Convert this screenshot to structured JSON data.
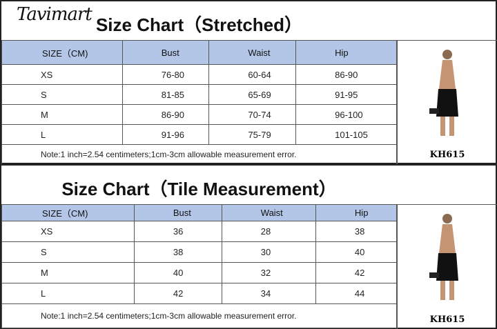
{
  "brand": "Tavimart",
  "columns": [
    "SIZE（CM)",
    "Bust",
    "Waist",
    "Hip"
  ],
  "note": "Note:1 inch=2.54 centimeters;1cm-3cm allowable measurement error.",
  "product_code": "KH615",
  "header_color": "#b4c6e7",
  "stretched": {
    "title": "Size Chart（Stretched）",
    "rows": [
      [
        "XS",
        "76-80",
        "60-64",
        "86-90"
      ],
      [
        "S",
        "81-85",
        "65-69",
        "91-95"
      ],
      [
        "M",
        "86-90",
        "70-74",
        "96-100"
      ],
      [
        "L",
        "91-96",
        "75-79",
        "101-105"
      ]
    ]
  },
  "tile": {
    "title": "Size Chart（Tile Measurement）",
    "rows": [
      [
        "XS",
        "36",
        "28",
        "38"
      ],
      [
        "S",
        "38",
        "30",
        "40"
      ],
      [
        "M",
        "40",
        "32",
        "42"
      ],
      [
        "L",
        "42",
        "34",
        "44"
      ]
    ]
  }
}
